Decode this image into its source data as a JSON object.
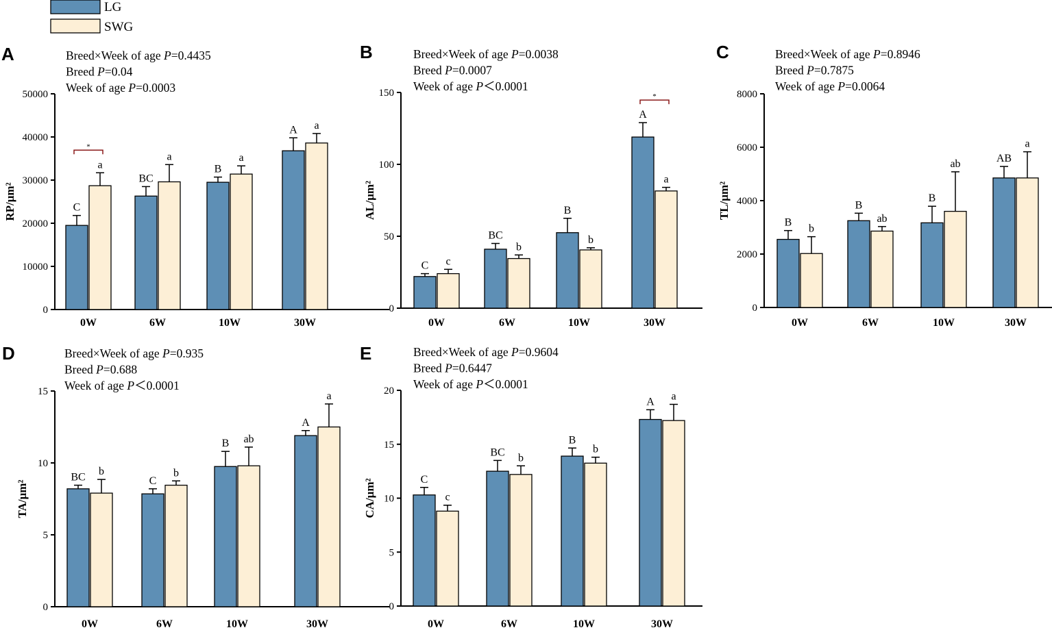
{
  "legend": [
    {
      "name": "LG",
      "color": "#5e8fb5"
    },
    {
      "name": "SWG",
      "color": "#fdefd6"
    }
  ],
  "chart_data": [
    {
      "type": "bar",
      "panel": "A",
      "stats": [
        {
          "label": "Breed×Week of age",
          "p": "P",
          "value": "=0.4435"
        },
        {
          "label": "Breed",
          "p": "P",
          "value": "=0.04"
        },
        {
          "label": "Week of age",
          "p": "P",
          "value": "=0.0003"
        }
      ],
      "ylabel": "RP/μm²",
      "ylim": [
        0,
        50000
      ],
      "yticks": [
        0,
        10000,
        20000,
        30000,
        40000,
        50000
      ],
      "categories": [
        "0W",
        "6W",
        "10W",
        "30W"
      ],
      "series": [
        {
          "name": "LG",
          "values": [
            19500,
            26300,
            29500,
            36800
          ],
          "errors": [
            2300,
            2200,
            1200,
            3000
          ],
          "letters": [
            "C",
            "BC",
            "B",
            "A"
          ]
        },
        {
          "name": "SWG",
          "values": [
            28700,
            29600,
            31400,
            38600
          ],
          "errors": [
            3000,
            4000,
            1900,
            2200
          ],
          "letters": [
            "a",
            "a",
            "a",
            "a"
          ]
        }
      ],
      "significance": [
        {
          "category": "0W",
          "label": "*"
        }
      ]
    },
    {
      "type": "bar",
      "panel": "B",
      "stats": [
        {
          "label": "Breed×Week of age",
          "p": "P",
          "value": "=0.0038"
        },
        {
          "label": "Breed",
          "p": "P",
          "value": "=0.0007"
        },
        {
          "label": "Week of age",
          "p": "P",
          "value": "＜0.0001"
        }
      ],
      "ylabel": "AL/μm²",
      "ylim": [
        0,
        150
      ],
      "yticks": [
        0,
        50,
        100,
        150
      ],
      "categories": [
        "0W",
        "6W",
        "10W",
        "30W"
      ],
      "series": [
        {
          "name": "LG",
          "values": [
            22,
            41,
            52.5,
            119
          ],
          "errors": [
            2,
            4,
            10,
            10
          ],
          "letters": [
            "C",
            "BC",
            "B",
            "A"
          ]
        },
        {
          "name": "SWG",
          "values": [
            24,
            34.5,
            40.5,
            81.5
          ],
          "errors": [
            3,
            2.5,
            1.5,
            2.5
          ],
          "letters": [
            "c",
            "b",
            "b",
            "a"
          ]
        }
      ],
      "significance": [
        {
          "category": "30W",
          "label": "*"
        }
      ]
    },
    {
      "type": "bar",
      "panel": "C",
      "stats": [
        {
          "label": "Breed×Week of age",
          "p": "P",
          "value": "=0.8946"
        },
        {
          "label": "Breed",
          "p": "P",
          "value": "=0.7875"
        },
        {
          "label": "Week of age",
          "p": "P",
          "value": "=0.0064"
        }
      ],
      "ylabel": "TL/μm²",
      "ylim": [
        0,
        8000
      ],
      "yticks": [
        0,
        2000,
        4000,
        6000,
        8000
      ],
      "categories": [
        "0W",
        "6W",
        "10W",
        "30W"
      ],
      "series": [
        {
          "name": "LG",
          "values": [
            2550,
            3250,
            3170,
            4850
          ],
          "errors": [
            330,
            280,
            620,
            430
          ],
          "letters": [
            "B",
            "B",
            "B",
            "AB"
          ]
        },
        {
          "name": "SWG",
          "values": [
            2020,
            2860,
            3600,
            4850
          ],
          "errors": [
            630,
            170,
            1480,
            980
          ],
          "letters": [
            "b",
            "ab",
            "ab",
            "a"
          ]
        }
      ],
      "significance": []
    },
    {
      "type": "bar",
      "panel": "D",
      "stats": [
        {
          "label": "Breed×Week of age",
          "p": "P",
          "value": "=0.935"
        },
        {
          "label": "Breed",
          "p": "P",
          "value": "=0.688"
        },
        {
          "label": "Week of age",
          "p": "P",
          "value": "＜0.0001"
        }
      ],
      "ylabel": "TA/μm²",
      "ylim": [
        0,
        15
      ],
      "yticks": [
        0,
        5,
        10,
        15
      ],
      "categories": [
        "0W",
        "6W",
        "10W",
        "30W"
      ],
      "series": [
        {
          "name": "LG",
          "values": [
            8.2,
            7.85,
            9.75,
            11.9
          ],
          "errors": [
            0.25,
            0.35,
            1.05,
            0.35
          ],
          "letters": [
            "BC",
            "C",
            "B",
            "A"
          ]
        },
        {
          "name": "SWG",
          "values": [
            7.9,
            8.45,
            9.8,
            12.5
          ],
          "errors": [
            0.95,
            0.3,
            1.3,
            1.6
          ],
          "letters": [
            "b",
            "b",
            "ab",
            "a"
          ]
        }
      ],
      "significance": []
    },
    {
      "type": "bar",
      "panel": "E",
      "stats": [
        {
          "label": "Breed×Week of age",
          "p": "P",
          "value": "=0.9604"
        },
        {
          "label": "Breed",
          "p": "P",
          "value": "=0.6447"
        },
        {
          "label": "Week of age",
          "p": "P",
          "value": "＜0.0001"
        }
      ],
      "ylabel": "CA/μm²",
      "ylim": [
        0,
        20
      ],
      "yticks": [
        0,
        5,
        10,
        15,
        20
      ],
      "categories": [
        "0W",
        "6W",
        "10W",
        "30W"
      ],
      "series": [
        {
          "name": "LG",
          "values": [
            10.3,
            12.5,
            13.9,
            17.3
          ],
          "errors": [
            0.7,
            1.0,
            0.75,
            0.9
          ],
          "letters": [
            "C",
            "BC",
            "B",
            "A"
          ]
        },
        {
          "name": "SWG",
          "values": [
            8.8,
            12.2,
            13.25,
            17.2
          ],
          "errors": [
            0.55,
            0.8,
            0.55,
            1.5
          ],
          "letters": [
            "c",
            "b",
            "b",
            "a"
          ]
        }
      ],
      "significance": []
    }
  ]
}
